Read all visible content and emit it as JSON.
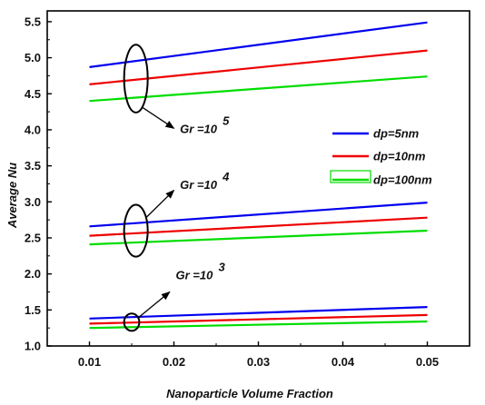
{
  "chart_data": {
    "type": "line",
    "xlabel": "Nanoparticle Volume Fraction",
    "ylabel": "Average Nu",
    "xlim": [
      0.005,
      0.055
    ],
    "ylim": [
      1.0,
      5.65
    ],
    "x_ticks": [
      0.01,
      0.02,
      0.03,
      0.04,
      0.05
    ],
    "x_tick_labels": [
      "0.01",
      "0.02",
      "0.03",
      "0.04",
      "0.05"
    ],
    "y_ticks": [
      1.0,
      1.5,
      2.0,
      2.5,
      3.0,
      3.5,
      4.0,
      4.5,
      5.0,
      5.5
    ],
    "y_tick_labels": [
      "1.0",
      "1.5",
      "2.0",
      "2.5",
      "3.0",
      "3.5",
      "4.0",
      "4.5",
      "5.0",
      "5.5"
    ],
    "grid": false,
    "legend_position": "right",
    "legend": [
      {
        "label": "dp=5nm",
        "color": "#0000ee"
      },
      {
        "label": "dp=10nm",
        "color": "#ee0000"
      },
      {
        "label": "dp=100nm",
        "color": "#00dd00"
      }
    ],
    "series": [
      {
        "group": "Gr=10^5",
        "legend_index": 0,
        "color": "#0000ee",
        "x": [
          0.01,
          0.05
        ],
        "y": [
          4.87,
          5.49
        ]
      },
      {
        "group": "Gr=10^5",
        "legend_index": 1,
        "color": "#ee0000",
        "x": [
          0.01,
          0.05
        ],
        "y": [
          4.63,
          5.1
        ]
      },
      {
        "group": "Gr=10^5",
        "legend_index": 2,
        "color": "#00dd00",
        "x": [
          0.01,
          0.05
        ],
        "y": [
          4.4,
          4.74
        ]
      },
      {
        "group": "Gr=10^4",
        "legend_index": 0,
        "color": "#0000ee",
        "x": [
          0.01,
          0.05
        ],
        "y": [
          2.66,
          2.99
        ]
      },
      {
        "group": "Gr=10^4",
        "legend_index": 1,
        "color": "#ee0000",
        "x": [
          0.01,
          0.05
        ],
        "y": [
          2.53,
          2.78
        ]
      },
      {
        "group": "Gr=10^4",
        "legend_index": 2,
        "color": "#00dd00",
        "x": [
          0.01,
          0.05
        ],
        "y": [
          2.41,
          2.6
        ]
      },
      {
        "group": "Gr=10^3",
        "legend_index": 0,
        "color": "#0000ee",
        "x": [
          0.01,
          0.05
        ],
        "y": [
          1.38,
          1.54
        ]
      },
      {
        "group": "Gr=10^3",
        "legend_index": 1,
        "color": "#ee0000",
        "x": [
          0.01,
          0.05
        ],
        "y": [
          1.31,
          1.43
        ]
      },
      {
        "group": "Gr=10^3",
        "legend_index": 2,
        "color": "#00dd00",
        "x": [
          0.01,
          0.05
        ],
        "y": [
          1.25,
          1.34
        ]
      }
    ],
    "annotations": [
      {
        "text": "Gr =10",
        "exponent": "5",
        "ellipse": {
          "cx": 0.0155,
          "cy": 4.71,
          "rx": 0.0014,
          "ry": 0.47
        },
        "arrow_to": [
          0.02,
          4.02
        ],
        "label_at": [
          0.0205,
          4.02
        ]
      },
      {
        "text": "Gr =10",
        "exponent": "4",
        "ellipse": {
          "cx": 0.0155,
          "cy": 2.6,
          "rx": 0.0014,
          "ry": 0.36
        },
        "arrow_to": [
          0.02,
          3.16
        ],
        "label_at": [
          0.0205,
          3.24
        ]
      },
      {
        "text": "Gr =10",
        "exponent": "3",
        "ellipse": {
          "cx": 0.015,
          "cy": 1.33,
          "rx": 0.0009,
          "ry": 0.12
        },
        "arrow_to": [
          0.0195,
          1.75
        ],
        "label_at": [
          0.02,
          1.99
        ]
      }
    ]
  }
}
